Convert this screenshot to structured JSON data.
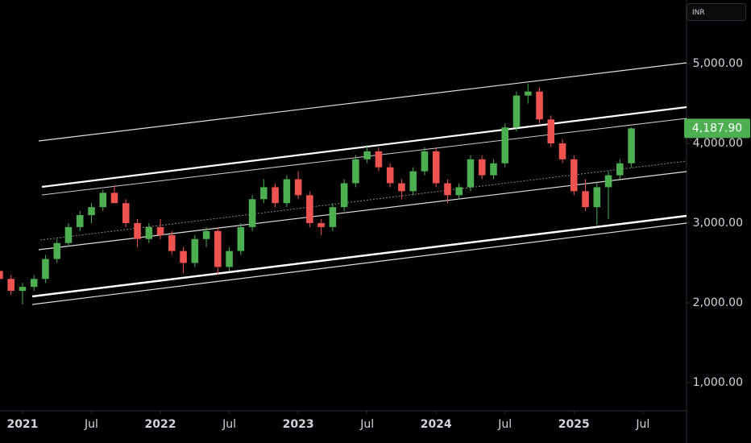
{
  "chart_data": {
    "type": "candlestick",
    "currency": "INR",
    "up_color": "#4caf50",
    "down_color": "#ef5350",
    "xlim": [
      -1.96,
      57.8
    ],
    "xticks": [
      {
        "value": 0,
        "label": "2021"
      },
      {
        "value": 6,
        "label": "Jul"
      },
      {
        "value": 12,
        "label": "2022"
      },
      {
        "value": 18,
        "label": "Jul"
      },
      {
        "value": 24,
        "label": "2023"
      },
      {
        "value": 30,
        "label": "Jul"
      },
      {
        "value": 36,
        "label": "2024"
      },
      {
        "value": 42,
        "label": "Jul"
      },
      {
        "value": 48,
        "label": "2025"
      },
      {
        "value": 54,
        "label": "Jul"
      }
    ],
    "ylim": [
      646,
      5798
    ],
    "yticks": [
      {
        "value": 1000,
        "label": "1,000.00"
      },
      {
        "value": 2000,
        "label": "2,000.00"
      },
      {
        "value": 3000,
        "label": "3,000.00"
      },
      {
        "value": 4000,
        "label": "4,000.00"
      },
      {
        "value": 5000,
        "label": "5,000.00"
      }
    ],
    "last_price": {
      "value": 4187.9,
      "label": "4,187.90"
    },
    "x": [
      -2,
      -1,
      0,
      1,
      2,
      3,
      4,
      5,
      6,
      7,
      8,
      9,
      10,
      11,
      12,
      13,
      14,
      15,
      16,
      17,
      18,
      19,
      20,
      21,
      22,
      23,
      24,
      25,
      26,
      27,
      28,
      29,
      30,
      31,
      32,
      33,
      34,
      35,
      36,
      37,
      38,
      39,
      40,
      41,
      42,
      43,
      44,
      45,
      46,
      47,
      48,
      49,
      50,
      51,
      52,
      53
    ],
    "open": [
      2400,
      2300,
      2150,
      2200,
      2300,
      2550,
      2750,
      2950,
      3100,
      3200,
      3380,
      3250,
      3000,
      2800,
      2950,
      2850,
      2650,
      2500,
      2800,
      2900,
      2450,
      2650,
      2950,
      3300,
      3450,
      3250,
      3550,
      3350,
      3000,
      2950,
      3200,
      3500,
      3800,
      3900,
      3700,
      3500,
      3400,
      3650,
      3900,
      3500,
      3350,
      3450,
      3800,
      3600,
      3750,
      4200,
      4600,
      4650,
      4300,
      4000,
      3800,
      3400,
      3200,
      3450,
      3600,
      3750
    ],
    "high": [
      2500,
      2350,
      2250,
      2350,
      2600,
      2800,
      3000,
      3150,
      3250,
      3420,
      3480,
      3300,
      3050,
      3000,
      3050,
      2900,
      2700,
      2850,
      2950,
      2950,
      2700,
      3000,
      3350,
      3550,
      3500,
      3600,
      3650,
      3400,
      3050,
      3250,
      3550,
      3850,
      3980,
      3950,
      3750,
      3550,
      3700,
      3950,
      3950,
      3550,
      3500,
      3850,
      3850,
      3800,
      4250,
      4650,
      4750,
      4700,
      4350,
      4050,
      3850,
      3550,
      3500,
      3650,
      3800,
      4200
    ],
    "low": [
      2250,
      2100,
      1980,
      2150,
      2250,
      2500,
      2700,
      2900,
      3000,
      3150,
      3300,
      2950,
      2700,
      2750,
      2800,
      2600,
      2370,
      2450,
      2700,
      2350,
      2400,
      2600,
      2900,
      3250,
      3200,
      3200,
      3300,
      2950,
      2850,
      2900,
      3150,
      3450,
      3750,
      3650,
      3450,
      3300,
      3350,
      3600,
      3450,
      3250,
      3300,
      3400,
      3550,
      3550,
      3700,
      4150,
      4500,
      4250,
      3950,
      3750,
      3350,
      3150,
      2980,
      3050,
      3550,
      3700
    ],
    "close": [
      2300,
      2150,
      2200,
      2300,
      2550,
      2750,
      2950,
      3100,
      3200,
      3380,
      3250,
      3000,
      2800,
      2950,
      2850,
      2650,
      2500,
      2800,
      2900,
      2450,
      2650,
      2950,
      3300,
      3450,
      3250,
      3550,
      3350,
      3000,
      2950,
      3200,
      3500,
      3800,
      3900,
      3700,
      3500,
      3400,
      3650,
      3900,
      3500,
      3350,
      3450,
      3800,
      3600,
      3750,
      4200,
      4600,
      4650,
      4300,
      4000,
      3800,
      3400,
      3200,
      3450,
      3600,
      3750,
      4187.9
    ]
  }
}
